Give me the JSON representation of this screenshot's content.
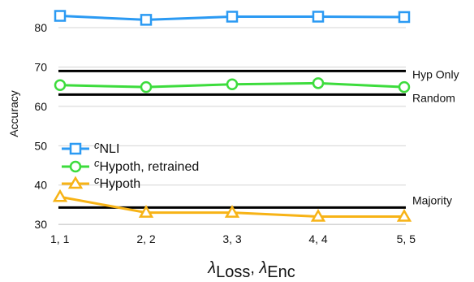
{
  "chart_data": {
    "type": "line",
    "ylabel": "Accuracy",
    "xlabel": {
      "sym1": "λ",
      "sub1": "Loss",
      "sep": ", ",
      "sym2": "λ",
      "sub2": "Enc"
    },
    "categories": [
      "1, 1",
      "2, 2",
      "3, 3",
      "4, 4",
      "5, 5"
    ],
    "ylim": [
      29,
      86
    ],
    "yticks": [
      30,
      40,
      50,
      60,
      70,
      80
    ],
    "grid": true,
    "legend_position": "left",
    "series": [
      {
        "name": "NLI",
        "prefix": "c",
        "suffix": "",
        "marker": "square",
        "color": "#2b9af3",
        "values": [
          83.0,
          82.0,
          82.8,
          82.8,
          82.7
        ]
      },
      {
        "name": "Hypoth",
        "prefix": "c",
        "suffix": ", retrained",
        "marker": "circle",
        "color": "#3ddc3d",
        "values": [
          65.4,
          64.9,
          65.6,
          65.9,
          64.9
        ]
      },
      {
        "name": "Hypoth",
        "prefix": "c",
        "suffix": "",
        "marker": "triangle",
        "color": "#f7b316",
        "values": [
          37.0,
          33.0,
          33.0,
          32.0,
          32.0
        ]
      }
    ],
    "reference_lines": [
      {
        "label": "Hyp Only",
        "value": 69.0
      },
      {
        "label": "Random",
        "value": 63.0
      },
      {
        "label": "Majority",
        "value": 34.3
      }
    ]
  }
}
